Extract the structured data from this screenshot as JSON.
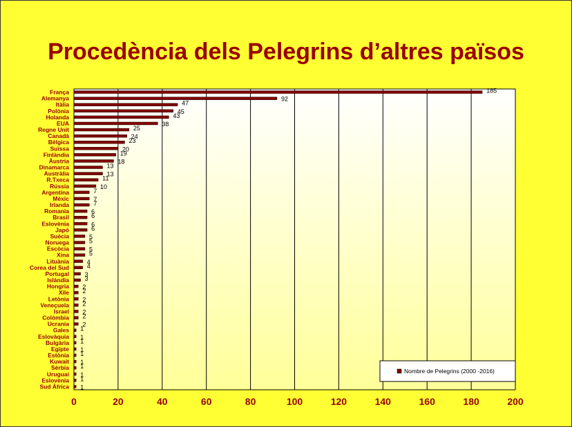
{
  "slide": {
    "title": "Procedència dels Pelegrins d’altres països"
  },
  "colors": {
    "background": "#FFFF33",
    "title": "#990000",
    "bar": "#800000",
    "plot_top": "#FFFFFF",
    "plot_bottom": "#FFFF99"
  },
  "chart_data": {
    "type": "bar",
    "orientation": "horizontal",
    "title": "",
    "xlabel": "",
    "ylabel": "",
    "xlim": [
      0,
      200
    ],
    "xticks": [
      0,
      20,
      40,
      60,
      80,
      100,
      120,
      140,
      160,
      180,
      200
    ],
    "grid": true,
    "legend_position": "bottom-right",
    "categories": [
      "França",
      "Alemanya",
      "Itàlia",
      "Polònia",
      "Holanda",
      "EUA",
      "Regne Unit",
      "Canadà",
      "Bèlgica",
      "Suïssa",
      "Finlàndia",
      "Àustria",
      "Dinamarca",
      "Austràlia",
      "R.Txeca",
      "Rússia",
      "Argentina",
      "Mèxic",
      "Irlanda",
      "Romania",
      "Brasil",
      "Eslovènia",
      "Japó",
      "Suècia",
      "Noruega",
      "Escòcia",
      "Xina",
      "Lituània",
      "Corea del Sud",
      "Portugal",
      "Islàndia",
      "Hongria",
      "Xile",
      "Letònia",
      "Veneçuela",
      "Israel",
      "Colòmbia",
      "Ucrania",
      "Gales",
      "Eslovàquia",
      "Bulgària",
      "Egipte",
      "Estònia",
      "Kuwait",
      "Sèrbia",
      "Uruguai",
      "Eslovènia",
      "Sud Àfrica"
    ],
    "series": [
      {
        "name": "Nombre de Pelegrins (2000 -2016)",
        "values": [
          185,
          92,
          47,
          45,
          43,
          38,
          25,
          24,
          23,
          20,
          19,
          18,
          13,
          13,
          11,
          10,
          7,
          7,
          7,
          6,
          6,
          6,
          6,
          5,
          5,
          5,
          5,
          4,
          4,
          3,
          3,
          2,
          2,
          2,
          2,
          2,
          2,
          2,
          1,
          1,
          1,
          1,
          1,
          1,
          1,
          1,
          1,
          1
        ]
      }
    ]
  }
}
